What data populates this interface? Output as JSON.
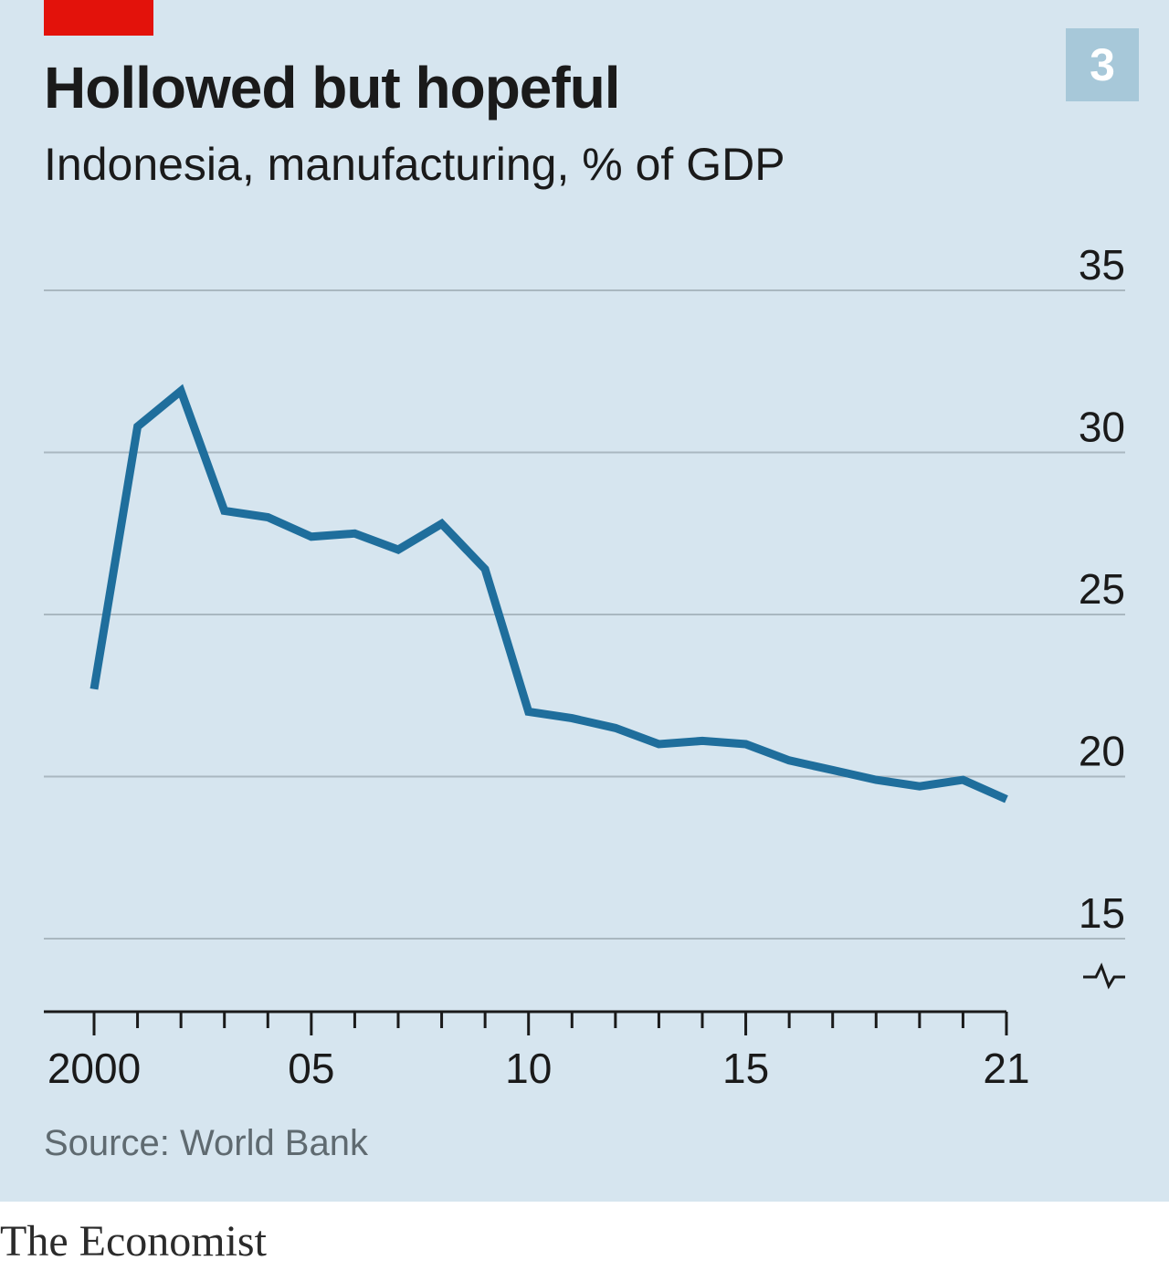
{
  "header": {
    "title": "Hollowed but hopeful",
    "subtitle": "Indonesia, manufacturing, % of GDP",
    "badge": "3"
  },
  "footer": {
    "source": "Source: World Bank",
    "brand": "The Economist"
  },
  "colors": {
    "background": "#d6e5ef",
    "line": "#1f6e9c",
    "accent": "#e3120b",
    "gridline": "#a9b7c0",
    "badge": "#a7c8d9"
  },
  "chart_data": {
    "type": "line",
    "title": "Hollowed but hopeful",
    "subtitle": "Indonesia, manufacturing, % of GDP",
    "xlabel": "",
    "ylabel": "",
    "x": [
      2000,
      2001,
      2002,
      2003,
      2004,
      2005,
      2006,
      2007,
      2008,
      2009,
      2010,
      2011,
      2012,
      2013,
      2014,
      2015,
      2016,
      2017,
      2018,
      2019,
      2020,
      2021
    ],
    "series": [
      {
        "name": "",
        "values": [
          22.7,
          30.8,
          31.9,
          28.2,
          28.0,
          27.4,
          27.5,
          27.0,
          27.8,
          26.4,
          22.0,
          21.8,
          21.5,
          21.0,
          21.1,
          21.0,
          20.5,
          20.2,
          19.9,
          19.7,
          19.9,
          19.3
        ]
      }
    ],
    "ylim": [
      15,
      35
    ],
    "xlim": [
      2000,
      2021
    ],
    "y_ticks": [
      "35",
      "30",
      "25",
      "20",
      "15"
    ],
    "x_tick_labels": [
      {
        "year": 2000,
        "label": "2000"
      },
      {
        "year": 2005,
        "label": "05"
      },
      {
        "year": 2010,
        "label": "10"
      },
      {
        "year": 2015,
        "label": "15"
      },
      {
        "year": 2021,
        "label": "21"
      }
    ],
    "y_axis_side": "right",
    "grid": true,
    "axis_break": true,
    "legend": "none"
  }
}
